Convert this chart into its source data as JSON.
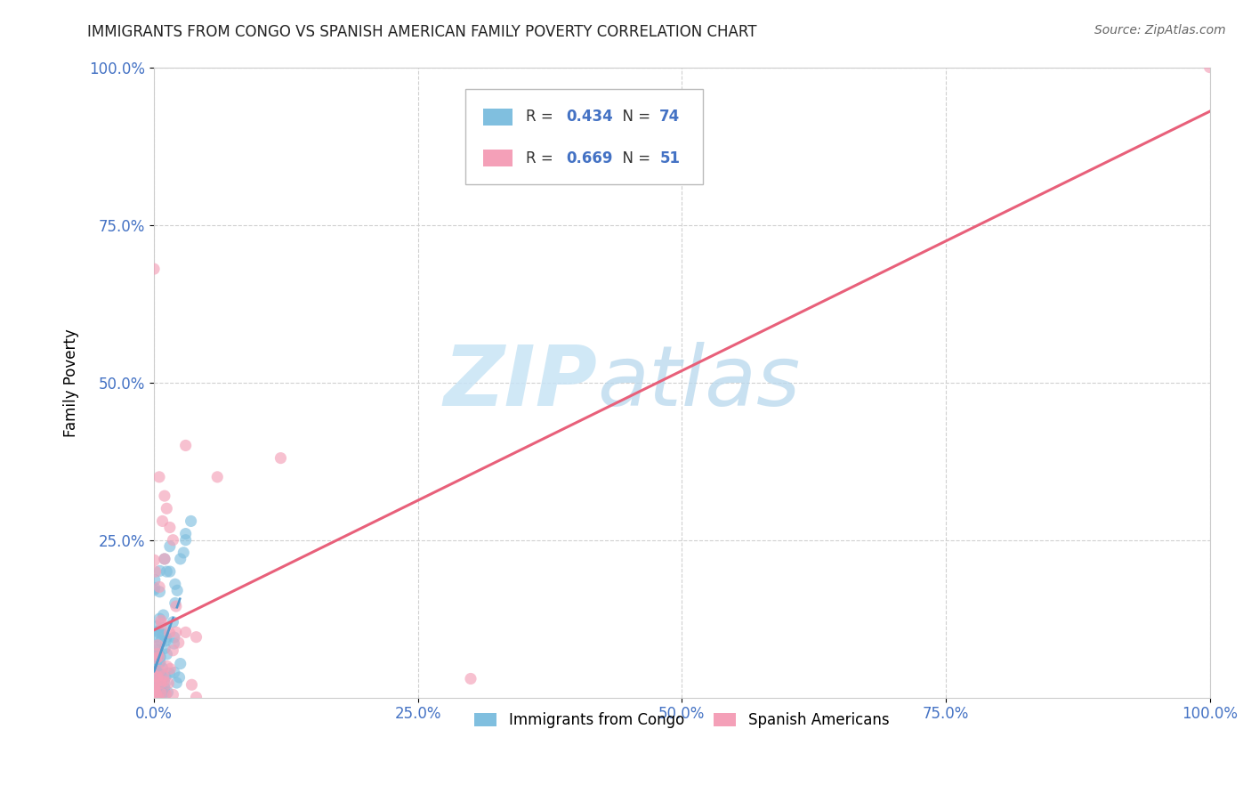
{
  "title": "IMMIGRANTS FROM CONGO VS SPANISH AMERICAN FAMILY POVERTY CORRELATION CHART",
  "source": "Source: ZipAtlas.com",
  "ylabel": "Family Poverty",
  "congo_R": 0.434,
  "congo_N": 74,
  "spanish_R": 0.669,
  "spanish_N": 51,
  "congo_color": "#80bfdf",
  "spanish_color": "#f4a0b8",
  "congo_line_color": "#5599cc",
  "spanish_line_color": "#e8607a",
  "watermark_color": "#c8e4f5",
  "xlim": [
    0,
    1
  ],
  "ylim": [
    0,
    1
  ],
  "xticklabels": [
    "0.0%",
    "25.0%",
    "50.0%",
    "75.0%",
    "100.0%"
  ],
  "yticklabels": [
    "25.0%",
    "50.0%",
    "75.0%",
    "100.0%"
  ],
  "tick_color": "#4472c4",
  "legend_box_color": "#cccccc",
  "title_fontsize": 12,
  "source_fontsize": 10,
  "label_fontsize": 12,
  "marker_size": 90,
  "marker_alpha": 0.65
}
